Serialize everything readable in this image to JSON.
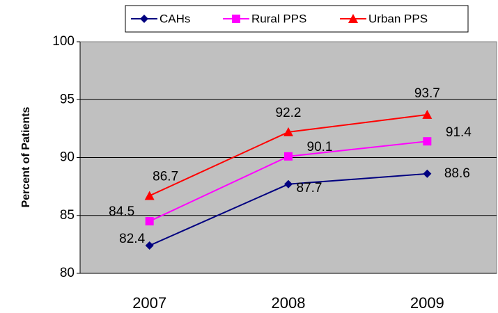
{
  "chart_data": {
    "type": "line",
    "y_label": "Percent of Patients",
    "categories": [
      "2007",
      "2008",
      "2009"
    ],
    "series": [
      {
        "name": "CAHs",
        "color": "#000080",
        "marker": "diamond",
        "values": [
          82.4,
          87.7,
          88.6
        ]
      },
      {
        "name": "Rural PPS",
        "color": "#ff00ff",
        "marker": "square",
        "values": [
          84.5,
          90.1,
          91.4
        ]
      },
      {
        "name": "Urban PPS",
        "color": "#ff0000",
        "marker": "triangle",
        "values": [
          86.7,
          92.2,
          93.7
        ]
      }
    ],
    "ylim": [
      80,
      100
    ],
    "yticks": [
      80,
      85,
      90,
      95,
      100
    ],
    "grid": true,
    "legend": "top"
  }
}
